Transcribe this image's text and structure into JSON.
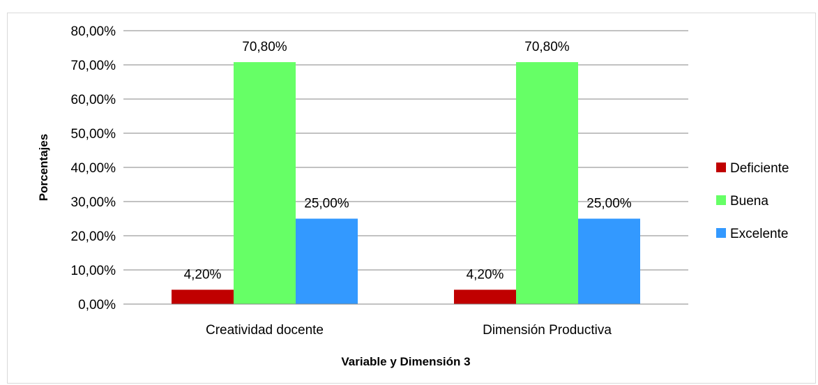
{
  "chart_data": {
    "type": "bar",
    "title": "",
    "xlabel": "Variable y Dimensión 3",
    "ylabel": "Porcentajes",
    "categories": [
      "Creatividad docente",
      "Dimensión Productiva"
    ],
    "series": [
      {
        "name": "Deficiente",
        "values": [
          4.2,
          4.2
        ],
        "labels": [
          "4,20%",
          "4,20%"
        ],
        "color": "#c00000"
      },
      {
        "name": "Buena",
        "values": [
          70.8,
          70.8
        ],
        "labels": [
          "70,80%",
          "70,80%"
        ],
        "color": "#66ff66"
      },
      {
        "name": "Excelente",
        "values": [
          25.0,
          25.0
        ],
        "labels": [
          "25,00%",
          "25,00%"
        ],
        "color": "#3399ff"
      }
    ],
    "ylim": [
      0,
      80
    ],
    "yticks": [
      0,
      10,
      20,
      30,
      40,
      50,
      60,
      70,
      80
    ],
    "ytick_labels": [
      "0,00%",
      "10,00%",
      "20,00%",
      "30,00%",
      "40,00%",
      "50,00%",
      "60,00%",
      "70,00%",
      "80,00%"
    ],
    "grid": true,
    "legend": "right"
  }
}
